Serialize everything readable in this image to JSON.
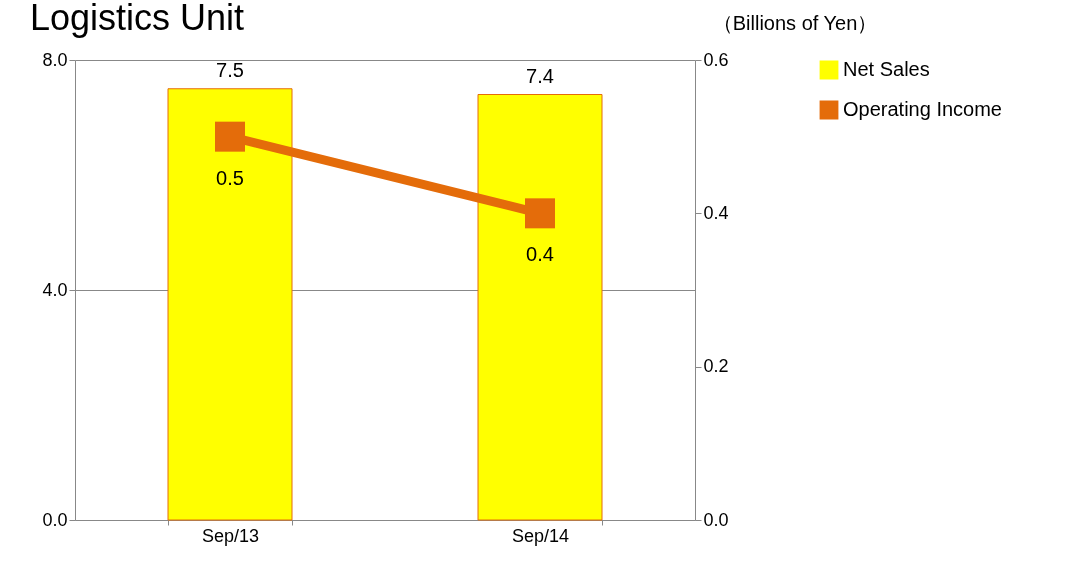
{
  "chart_data": {
    "type": "bar",
    "title": "Logistics Unit",
    "categories": [
      "Sep/13",
      "Sep/14"
    ],
    "series": [
      {
        "name": "Net Sales",
        "color": "#ffff00",
        "values": [
          7.5,
          7.4
        ]
      },
      {
        "name": "Operating Income",
        "type": "line",
        "axis": "y2",
        "color": "#e46c0a",
        "values": [
          0.5,
          0.4
        ]
      }
    ],
    "ylim": [
      0,
      8
    ],
    "yticks": [
      {
        "value": 0,
        "label": "0.0"
      },
      {
        "value": 4,
        "label": "4.0"
      },
      {
        "value": 8,
        "label": "8.0"
      }
    ],
    "y2lim": [
      0,
      0.6
    ],
    "y2ticks": [
      {
        "value": 0,
        "label": "0.0"
      },
      {
        "value": 0.2,
        "label": "0.2"
      },
      {
        "value": 0.4,
        "label": "0.4"
      },
      {
        "value": 0.6,
        "label": "0.6"
      }
    ],
    "annotations": [
      "（Billions of Yen）"
    ],
    "data_labels": true,
    "grid": "y",
    "legend": "right",
    "marker": "square"
  }
}
